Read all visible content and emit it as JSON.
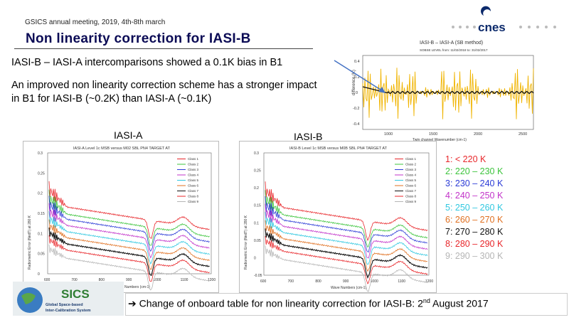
{
  "header": {
    "meeting": "GSICS annual meeting, 2019, 4th-8th march",
    "title": "Non linearity correction for IASI-B",
    "brand": "cnes"
  },
  "bullets": {
    "b1": "IASI-B – IASI-A intercomparisons showed a 0.1K bias in B1",
    "b2": "An improved non linearity correction scheme has a stronger impact in B1 for IASI-B (~0.2K) than IASI-A (~0.1K)"
  },
  "labels": {
    "iasi_a": "IASI-A",
    "iasi_b": "IASI-B"
  },
  "top_plot": {
    "title": "IASI-B – IASI-A (SB method)",
    "subtitle": "SOBSE LEVEL from: 11/02/2018 to: 31/02/2017",
    "ylabel": "difference (K)",
    "xlabel": "Twin channel Wavenumber (cm-1)",
    "yticks": [
      "0.4",
      "0.2",
      "0",
      "-0.2",
      "-0.4"
    ],
    "xticks": [
      "1000",
      "1500",
      "2000",
      "2500"
    ]
  },
  "plot_a": {
    "title": "IASI-A Level 1c MSB versus M02 SBL PN4 TARGET AT",
    "ylabel": "Radiometric Error (NedT) at 280 K",
    "xlabel": "Wave Numbers (cm-1)",
    "yticks": [
      "0.3",
      "0.25",
      "0.2",
      "0.15",
      "0.1",
      "0.05",
      "0"
    ],
    "xticks": [
      "600",
      "700",
      "800",
      "900",
      "1000",
      "1100",
      "1200"
    ],
    "classes": [
      "Class 1",
      "Class 2",
      "Class 3",
      "Class 4",
      "Class 5",
      "Class 6",
      "Class 7",
      "Class 8",
      "Class 9"
    ]
  },
  "plot_b": {
    "title": "IASI-B Level 1c MSB versus M0B SBL PN4 TARGET AT",
    "ylabel": "Radiometric Error (NedT) at 280 K",
    "xlabel": "Wave Numbers (cm-1)",
    "yticks": [
      "0.3",
      "0.25",
      "0.2",
      "0.15",
      "0.1",
      "0.05",
      "0",
      "-0.05"
    ],
    "xticks": [
      "600",
      "700",
      "800",
      "900",
      "1000",
      "1100",
      "1200"
    ],
    "classes": [
      "Class 1",
      "Class 2",
      "Class 3",
      "Class 4",
      "Class 5",
      "Class 6",
      "Class 7",
      "Class 8",
      "Class 9"
    ]
  },
  "legend": [
    {
      "text": "1: < 220 K",
      "color": "#e8262a"
    },
    {
      "text": "2: 220 – 230 K",
      "color": "#3cc43c"
    },
    {
      "text": "3: 230 – 240 K",
      "color": "#2b3bd6"
    },
    {
      "text": "4: 240 – 250 K",
      "color": "#c233c9"
    },
    {
      "text": "5: 250 – 260 K",
      "color": "#31c8e0"
    },
    {
      "text": "6: 260 – 270 K",
      "color": "#e07020"
    },
    {
      "text": "7: 270 – 280 K",
      "color": "#111111"
    },
    {
      "text": "8: 280 – 290 K",
      "color": "#e8262a"
    },
    {
      "text": "9: 290 – 300 K",
      "color": "#b5b5b5"
    }
  ],
  "footer": {
    "arrow": "➔",
    "text": "Change of onboard table for non linearity correction for IASI-B: 2",
    "sup": "nd",
    "tail": " August 2017"
  },
  "sics": {
    "name": "SICS",
    "tagline1": "Global Space-based",
    "tagline2": "Inter-Calibration System"
  }
}
